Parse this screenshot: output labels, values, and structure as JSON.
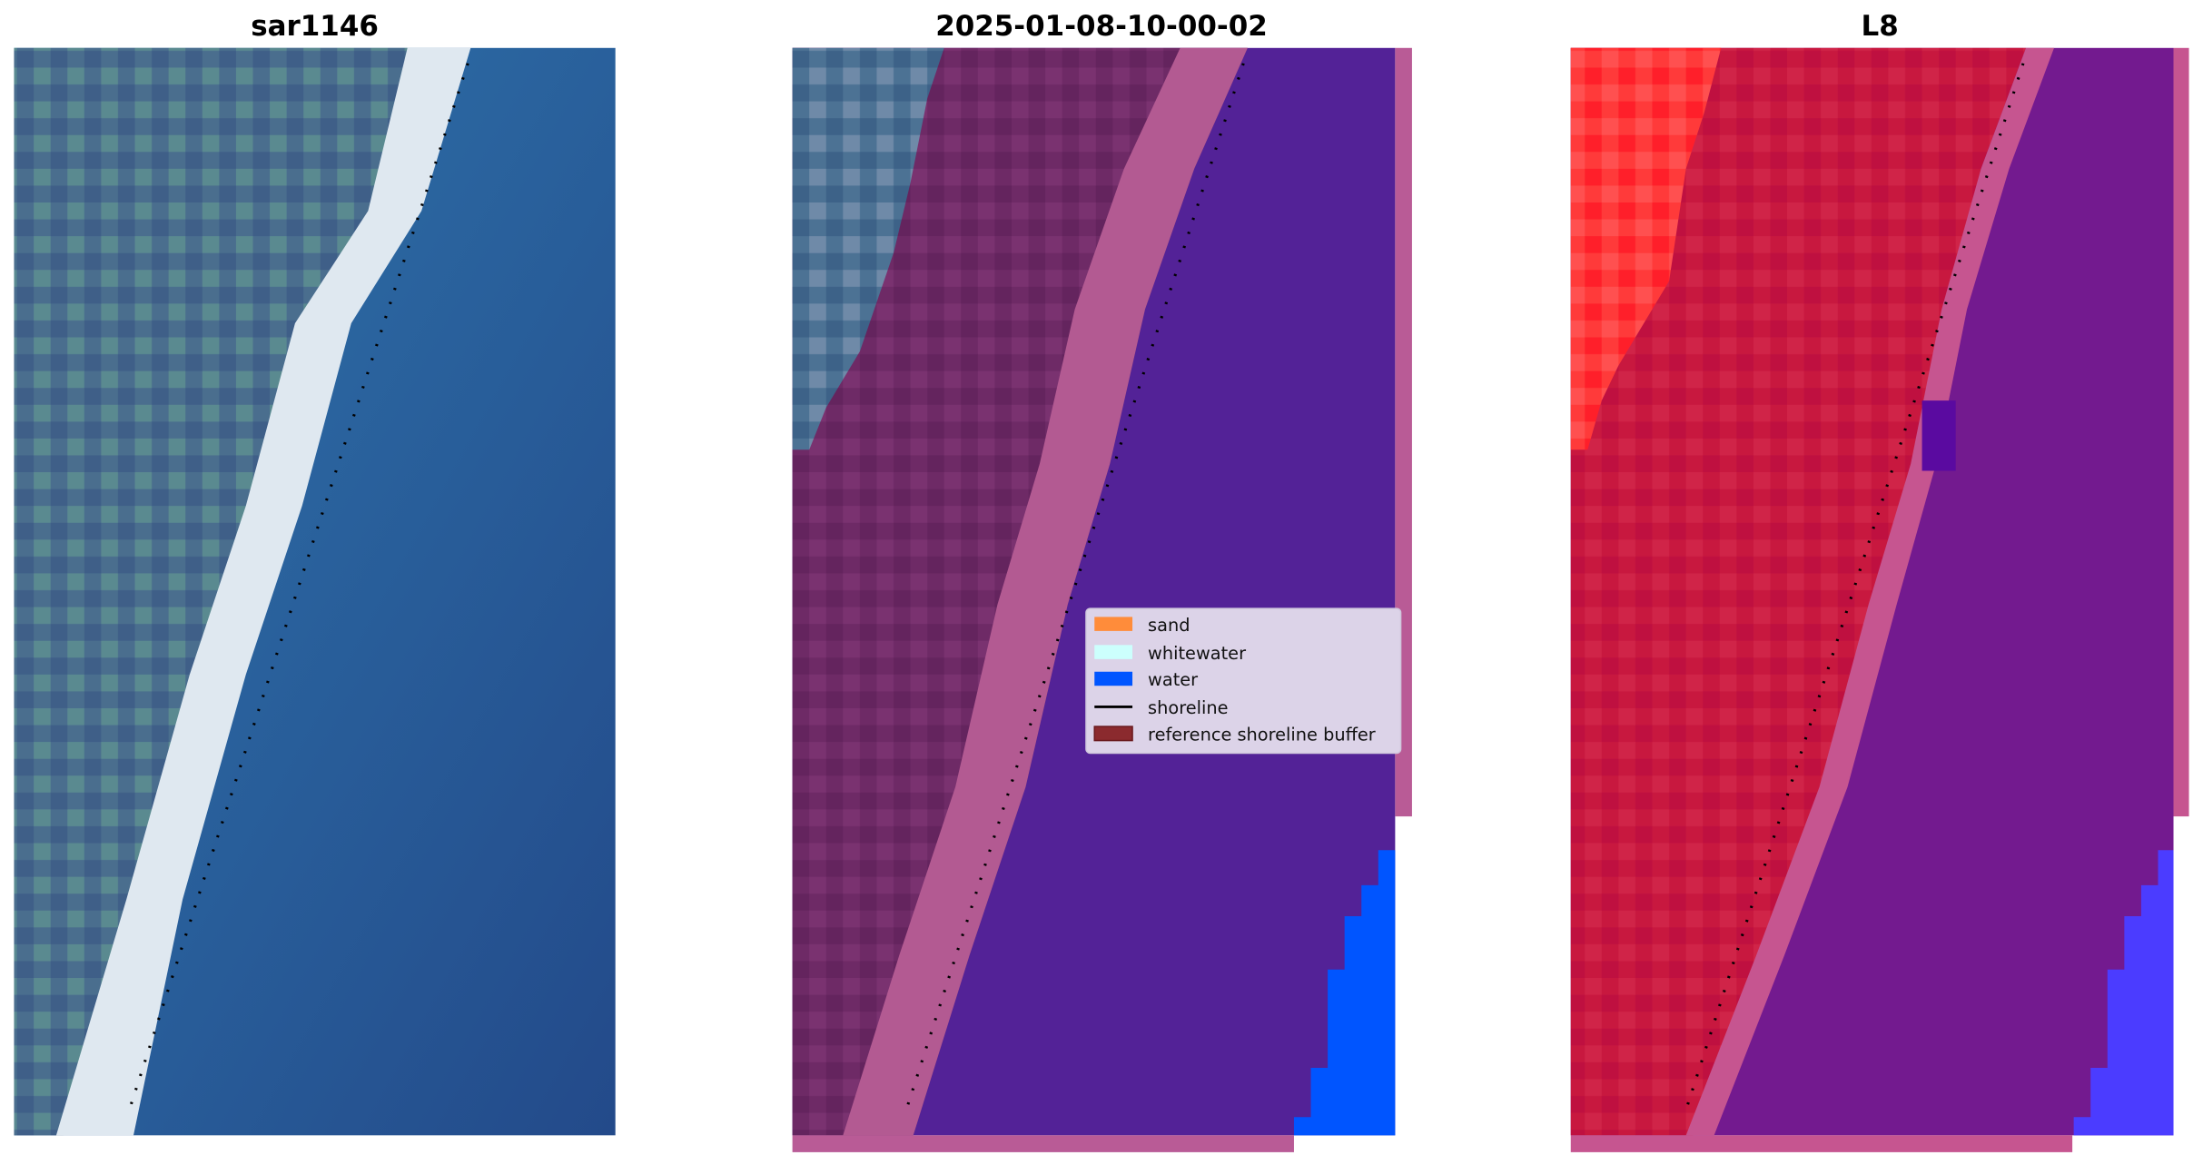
{
  "panels": [
    {
      "title": "sar1146"
    },
    {
      "title": "2025-01-08-10-00-02"
    },
    {
      "title": "L8"
    }
  ],
  "legend": {
    "items": [
      {
        "label": "sand",
        "color": "#ff8c3a",
        "kind": "patch"
      },
      {
        "label": "whitewater",
        "color": "#ccfffd",
        "kind": "patch"
      },
      {
        "label": "water",
        "color": "#0055ff",
        "kind": "patch"
      },
      {
        "label": "shoreline",
        "color": "#000000",
        "kind": "line"
      },
      {
        "label": "reference shoreline buffer",
        "color": "#8b2a2e",
        "kind": "patch"
      }
    ]
  },
  "colors": {
    "ocean": "#2a5f9a",
    "buffer_overlay": "#b95b96",
    "water_class": "#0055ff",
    "water_overlay": "#532297"
  }
}
